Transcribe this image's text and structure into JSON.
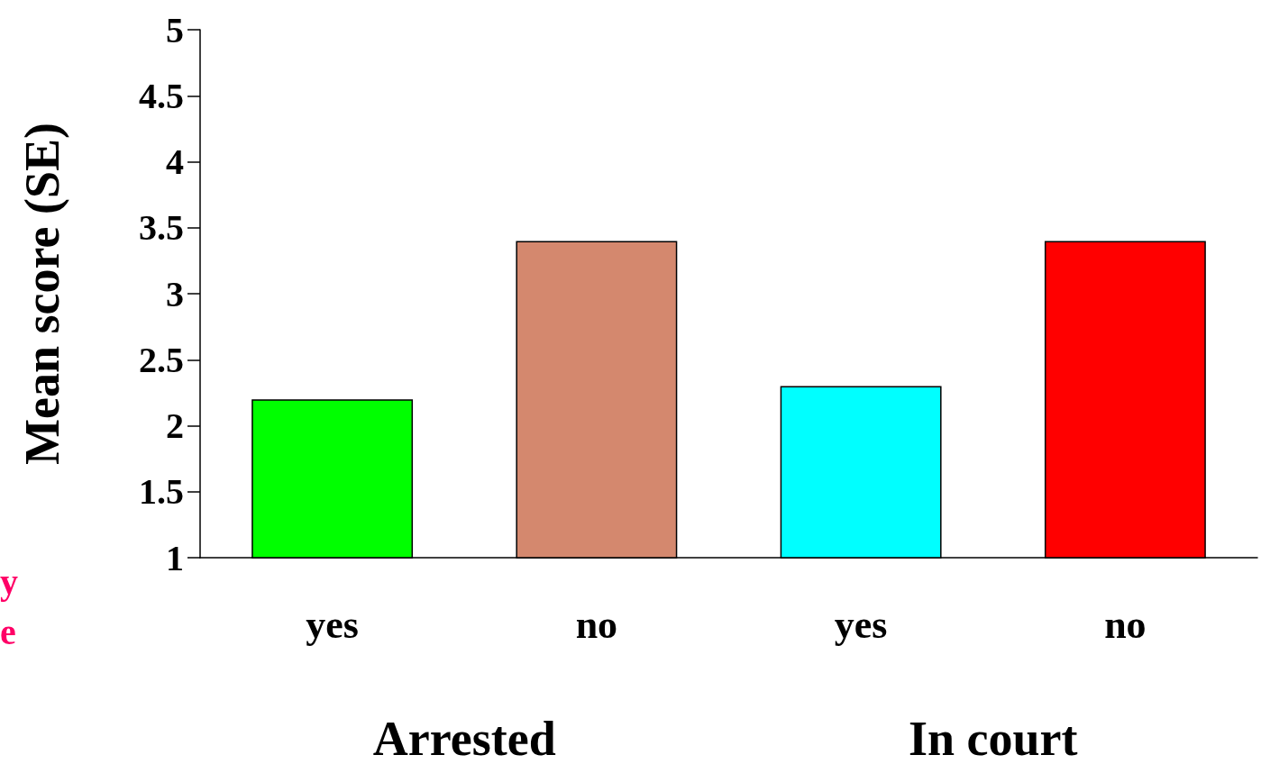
{
  "chart_data": {
    "type": "bar",
    "ylabel": "Mean score (SE)",
    "categories": [
      "yes",
      "no",
      "yes",
      "no"
    ],
    "values": [
      2.2,
      3.4,
      2.3,
      3.4
    ],
    "colors": [
      "#00ff00",
      "#d4886e",
      "#00ffff",
      "#ff0000"
    ],
    "ylim": [
      1,
      5
    ],
    "yticks": [
      1,
      1.5,
      2,
      2.5,
      3,
      3.5,
      4,
      4.5,
      5
    ],
    "grid": false,
    "annotations": [
      "Arrested",
      "In court",
      "y",
      "e"
    ]
  }
}
